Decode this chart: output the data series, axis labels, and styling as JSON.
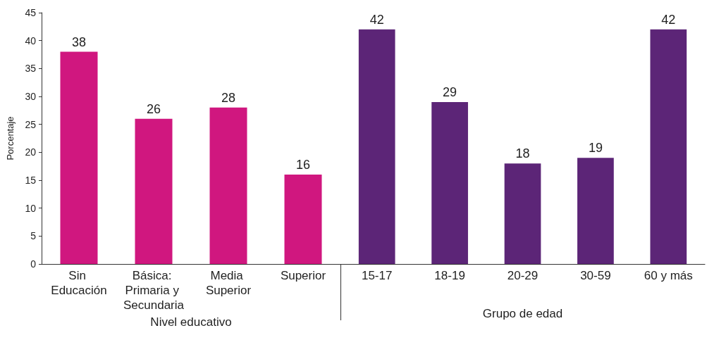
{
  "chart_data": [
    {
      "type": "bar",
      "xlabel": "Nivel educativo",
      "ylabel": "Porcentaje",
      "categories": [
        "Sin Educación",
        "Básica: Primaria y Secundaria",
        "Media Superior",
        "Superior"
      ],
      "values": [
        38,
        26,
        28,
        16
      ],
      "colors": [
        "#d0177f",
        "#d0177f",
        "#d0177f",
        "#d0177f"
      ],
      "ylim": [
        0,
        45
      ],
      "yticks": [
        0,
        5,
        10,
        15,
        20,
        25,
        30,
        35,
        40,
        45
      ],
      "data_labels": true
    },
    {
      "type": "bar",
      "xlabel": "Grupo de edad",
      "categories": [
        "15-17",
        "18-19",
        "20-29",
        "30-59",
        "60 y más"
      ],
      "values": [
        42,
        29,
        18,
        19,
        42
      ],
      "colors": [
        "#5c2577",
        "#5c2577",
        "#5c2577",
        "#5c2577",
        "#5c2577"
      ],
      "ylim": [
        0,
        45
      ],
      "yticks": [
        0,
        5,
        10,
        15,
        20,
        25,
        30,
        35,
        40,
        45
      ],
      "data_labels": true,
      "tick_labels": "x"
    }
  ]
}
